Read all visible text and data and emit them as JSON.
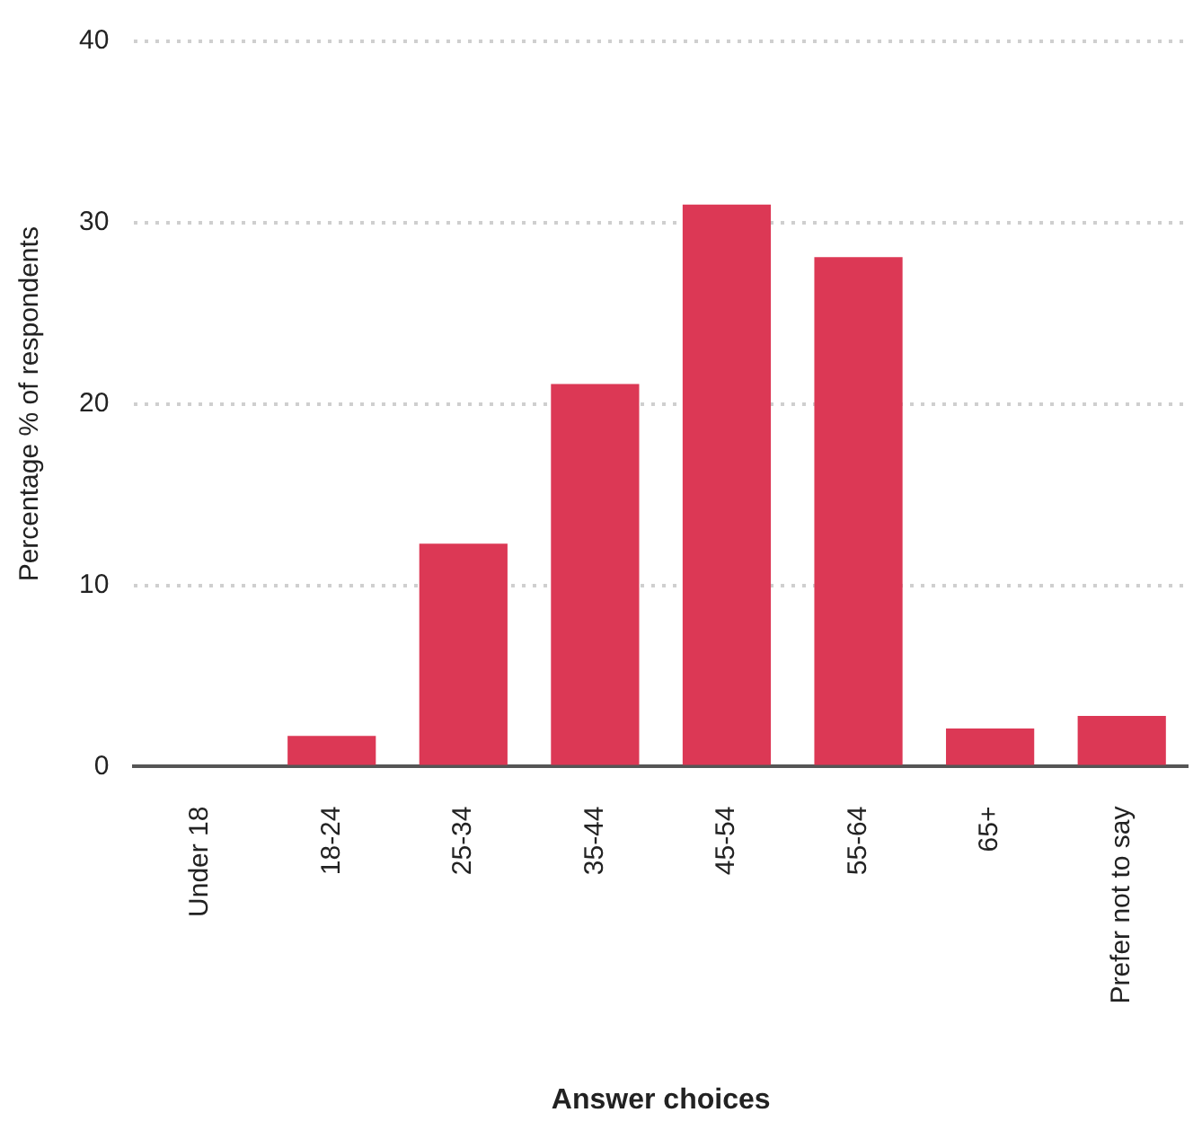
{
  "chart_data": {
    "type": "bar",
    "xlabel": "Answer choices",
    "ylabel": "Percentage % of respondents",
    "categories": [
      "Under 18",
      "18-24",
      "25-34",
      "35-44",
      "45-54",
      "55-64",
      "65+",
      "Prefer not to say"
    ],
    "values": [
      0,
      1.7,
      12.3,
      21.1,
      31.0,
      28.1,
      2.1,
      2.8
    ],
    "color": "#dc3855",
    "ylim": [
      0,
      40
    ],
    "yticks": [
      0,
      10,
      20,
      30,
      40
    ],
    "grid": "y",
    "legend": false
  }
}
